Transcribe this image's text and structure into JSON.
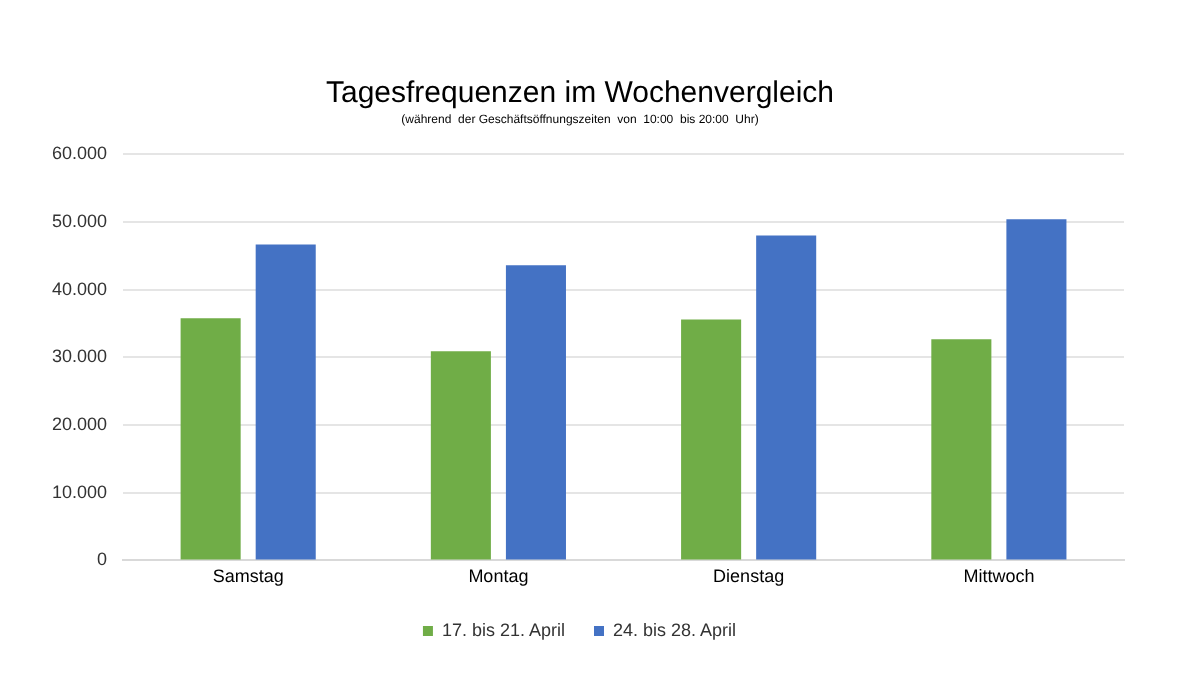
{
  "chart_data": {
    "type": "bar",
    "title": "Tagesfrequenzen im Wochenvergleich",
    "subtitle": "(während  der Geschäftsöffnungszeiten  von  10:00  bis 20:00  Uhr)",
    "categories": [
      "Samstag",
      "Montag",
      "Dienstag",
      "Mittwoch"
    ],
    "series": [
      {
        "name": "17. bis 21. April",
        "color": "#70ad47",
        "values": [
          35800,
          30900,
          35600,
          32700
        ]
      },
      {
        "name": "24. bis 28. April",
        "color": "#4472c4",
        "values": [
          46700,
          43600,
          48000,
          50400
        ]
      }
    ],
    "ylim": [
      0,
      60000
    ],
    "yticks": [
      0,
      {
        "value": 10000,
        "label": "10.000"
      },
      {
        "value": 20000,
        "label": "20.000"
      },
      {
        "value": 30000,
        "label": "30.000"
      },
      {
        "value": 40000,
        "label": "40.000"
      },
      {
        "value": 50000,
        "label": "50.000"
      },
      {
        "value": 60000,
        "label": "60.000"
      }
    ],
    "grid": "y",
    "legend": "bottom"
  }
}
